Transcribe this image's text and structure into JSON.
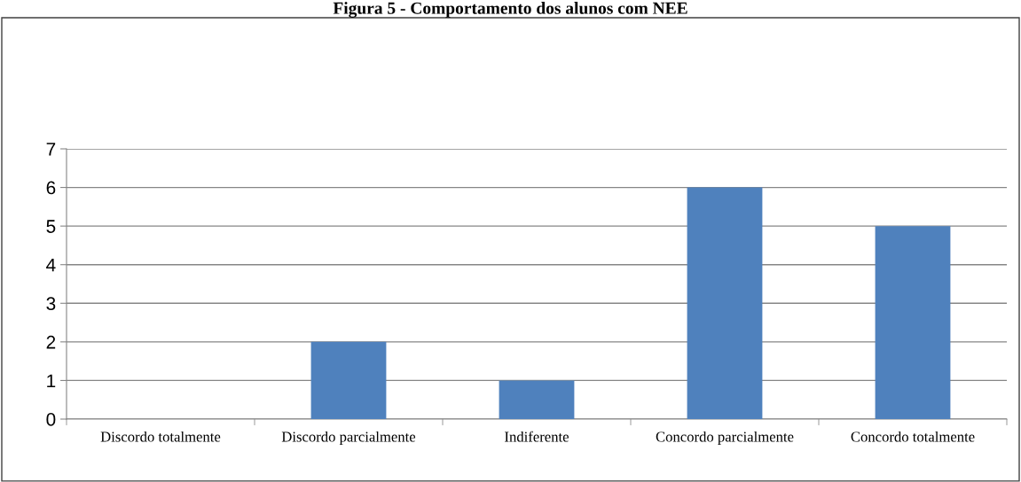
{
  "chart_data": {
    "type": "bar",
    "title": "Figura 5 - Comportamento dos alunos com NEE",
    "categories": [
      "Discordo totalmente",
      "Discordo parcialmente",
      "Indiferente",
      "Concordo parcialmente",
      "Concordo totalmente"
    ],
    "values": [
      0,
      2,
      1,
      6,
      5
    ],
    "color": "#4f81bd",
    "ylim": [
      0,
      7
    ],
    "yticks": [
      0,
      1,
      2,
      3,
      4,
      5,
      6,
      7
    ],
    "grid": "y",
    "legend": false
  }
}
